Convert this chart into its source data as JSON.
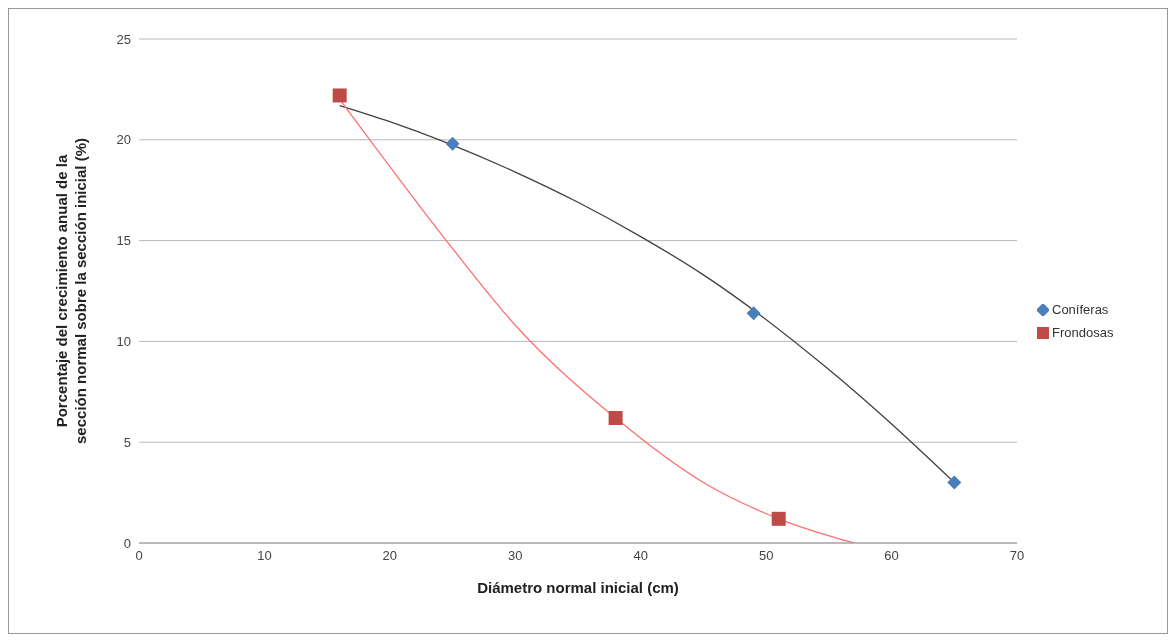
{
  "chart_data": {
    "type": "scatter",
    "xlabel": "Diámetro normal inicial (cm)",
    "ylabel": "Porcentaje del crecimiento anual de la sección normal sobre la sección inicial (%)",
    "xlim": [
      0,
      70
    ],
    "xticks": [
      0,
      10,
      20,
      30,
      40,
      50,
      60,
      70
    ],
    "ylim": [
      0,
      25
    ],
    "yticks": [
      0,
      5,
      10,
      15,
      20,
      25
    ],
    "grid": "y",
    "legend": "right",
    "series": [
      {
        "name": "Coníferas",
        "type": "scatter",
        "marker": "diamond",
        "color": "#4a7ebb",
        "x": [
          25,
          49,
          65
        ],
        "values": [
          19.8,
          11.4,
          3.0
        ]
      },
      {
        "name": "Frondosas",
        "type": "scatter",
        "marker": "square",
        "color": "#be4b48",
        "x": [
          16,
          38,
          51
        ],
        "values": [
          22.2,
          6.2,
          1.2
        ]
      },
      {
        "type": "line",
        "marker": "none",
        "color": "#404040",
        "x": [
          16,
          20,
          30,
          35,
          40,
          45,
          55,
          60,
          65
        ],
        "values": [
          21.7,
          20.9,
          18.4,
          16.9,
          15.2,
          13.3,
          8.6,
          5.9,
          3.0
        ]
      },
      {
        "type": "line",
        "marker": "none",
        "color": "#ff7070",
        "x": [
          16,
          18.4,
          24.5,
          30,
          38,
          45,
          51,
          57
        ],
        "values": [
          22.0,
          20,
          15,
          10.8,
          6.2,
          3.0,
          1.2,
          0
        ]
      }
    ]
  }
}
